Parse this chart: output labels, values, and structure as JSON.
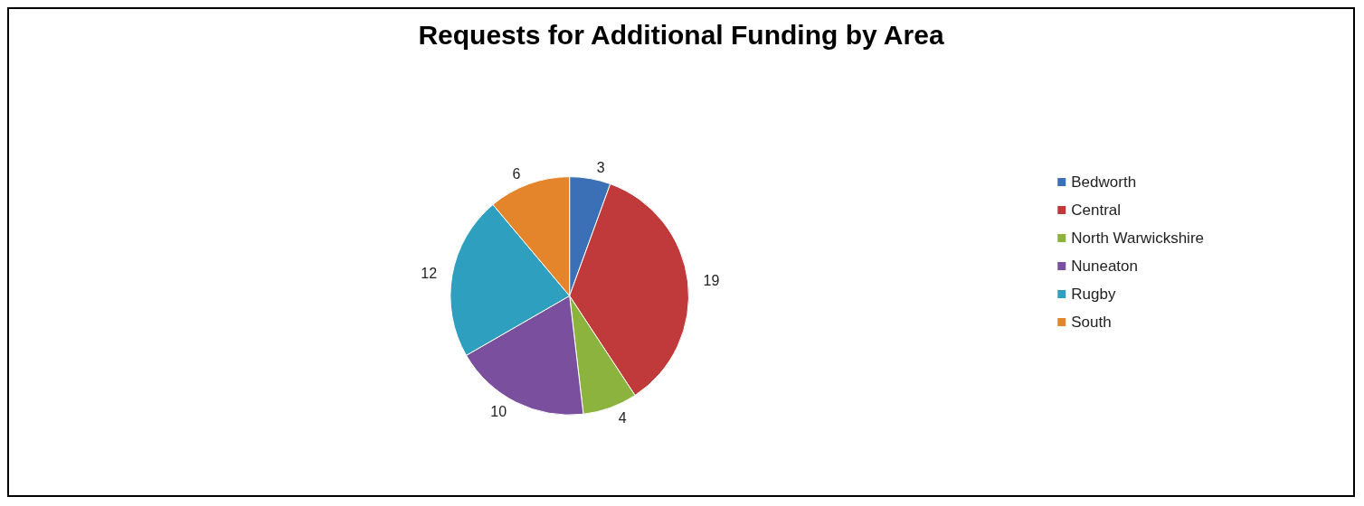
{
  "chart_data": {
    "type": "pie",
    "title": "Requests for Additional Funding by Area",
    "categories": [
      "Bedworth",
      "Central",
      "North Warwickshire",
      "Nuneaton",
      "Rugby",
      "South"
    ],
    "values": [
      3,
      19,
      4,
      10,
      12,
      6
    ],
    "colors": [
      "#3b6fb6",
      "#c0393b",
      "#8cb33d",
      "#7a4f9e",
      "#2f9fc0",
      "#e5852b"
    ],
    "data_labels": true,
    "legend": "right"
  }
}
